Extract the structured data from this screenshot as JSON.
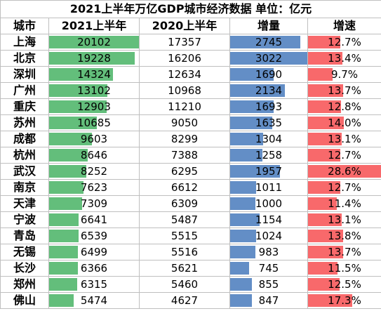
{
  "title": "2021上半年万亿GDP城市经济数据  单位：亿元",
  "headers": [
    "城市",
    "2021上半年",
    "2020上半年",
    "增量",
    "增速"
  ],
  "colors": {
    "gdp_bar": "#63be7b",
    "increment_bar": "#638ec6",
    "growth_bar": "#f8696b",
    "grid": "#bfbfbf"
  },
  "rows": [
    {
      "city": "上海",
      "gdp2021": "20102",
      "gdp2020": "17357",
      "increment": "2745",
      "growth": "12.7%"
    },
    {
      "city": "北京",
      "gdp2021": "19228",
      "gdp2020": "16206",
      "increment": "3022",
      "growth": "13.4%"
    },
    {
      "city": "深圳",
      "gdp2021": "14324",
      "gdp2020": "12634",
      "increment": "1690",
      "growth": "9.7%"
    },
    {
      "city": "广州",
      "gdp2021": "13102",
      "gdp2020": "10968",
      "increment": "2134",
      "growth": "13.7%"
    },
    {
      "city": "重庆",
      "gdp2021": "12903",
      "gdp2020": "11210",
      "increment": "1693",
      "growth": "12.8%"
    },
    {
      "city": "苏州",
      "gdp2021": "10685",
      "gdp2020": "9050",
      "increment": "1635",
      "growth": "14.0%"
    },
    {
      "city": "成都",
      "gdp2021": "9603",
      "gdp2020": "8299",
      "increment": "1304",
      "growth": "13.1%"
    },
    {
      "city": "杭州",
      "gdp2021": "8646",
      "gdp2020": "7388",
      "increment": "1258",
      "growth": "12.7%"
    },
    {
      "city": "武汉",
      "gdp2021": "8252",
      "gdp2020": "6295",
      "increment": "1957",
      "growth": "28.6%"
    },
    {
      "city": "南京",
      "gdp2021": "7623",
      "gdp2020": "6612",
      "increment": "1011",
      "growth": "12.7%"
    },
    {
      "city": "天津",
      "gdp2021": "7309",
      "gdp2020": "6309",
      "increment": "1000",
      "growth": "11.4%"
    },
    {
      "city": "宁波",
      "gdp2021": "6641",
      "gdp2020": "5487",
      "increment": "1154",
      "growth": "13.1%"
    },
    {
      "city": "青岛",
      "gdp2021": "6539",
      "gdp2020": "5515",
      "increment": "1024",
      "growth": "13.8%"
    },
    {
      "city": "无锡",
      "gdp2021": "6499",
      "gdp2020": "5516",
      "increment": "983",
      "growth": "13.7%"
    },
    {
      "city": "长沙",
      "gdp2021": "6366",
      "gdp2020": "5621",
      "increment": "745",
      "growth": "11.5%"
    },
    {
      "city": "郑州",
      "gdp2021": "6315",
      "gdp2020": "5460",
      "increment": "855",
      "growth": "12.5%"
    },
    {
      "city": "佛山",
      "gdp2021": "5474",
      "gdp2020": "4627",
      "increment": "847",
      "growth": "17.3%"
    }
  ]
}
